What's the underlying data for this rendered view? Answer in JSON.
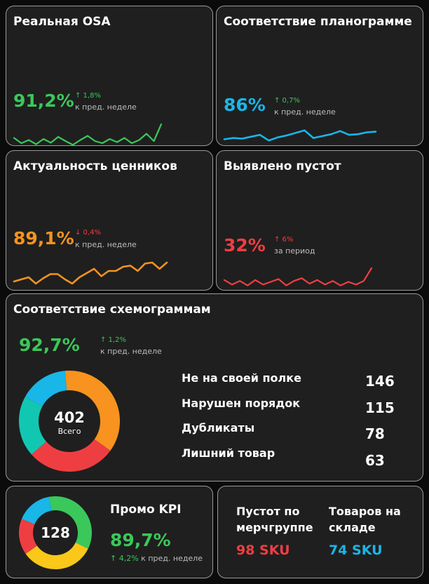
{
  "colors": {
    "green": "#3ac85a",
    "blue": "#19b6e8",
    "orange": "#f7931e",
    "red": "#ef3e42",
    "teal": "#12c7b1",
    "yellow": "#f9c818"
  },
  "cards": {
    "osa": {
      "title": "Реальная OSA",
      "value": "91,2%",
      "delta": "↑ 1,8%",
      "note": "к пред. неделе",
      "spark": [
        0.35,
        0.1,
        0.25,
        0.05,
        0.3,
        0.12,
        0.4,
        0.2,
        0.02,
        0.25,
        0.45,
        0.2,
        0.1,
        0.3,
        0.15,
        0.35,
        0.1,
        0.25,
        0.55,
        0.2,
        1.0
      ]
    },
    "planogram": {
      "title": "Соответствие планограмме",
      "value": "86%",
      "delta": "↑ 0,7%",
      "note": "к пред. неделе",
      "spark": [
        0.2,
        0.3,
        0.25,
        0.4,
        0.55,
        0.1,
        0.35,
        0.5,
        0.7,
        0.9,
        0.3,
        0.45,
        0.6,
        0.85,
        0.55,
        0.6,
        0.75,
        0.8
      ]
    },
    "price_tags": {
      "title": "Актуальность ценников",
      "value": "89,1%",
      "delta": "↓ 0,4%",
      "note": "к пред. неделе",
      "spark": [
        0.1,
        0.2,
        0.3,
        0.0,
        0.25,
        0.45,
        0.45,
        0.2,
        0.0,
        0.3,
        0.5,
        0.7,
        0.35,
        0.6,
        0.6,
        0.8,
        0.85,
        0.6,
        0.95,
        1.0,
        0.7,
        1.0
      ]
    },
    "gaps": {
      "title": "Выявлено пустот",
      "value": "32%",
      "delta": "↑ 6%",
      "note": "за период",
      "spark": [
        0.35,
        0.1,
        0.3,
        0.05,
        0.35,
        0.1,
        0.25,
        0.4,
        0.05,
        0.3,
        0.45,
        0.15,
        0.35,
        0.1,
        0.3,
        0.05,
        0.25,
        0.1,
        0.3,
        1.0
      ]
    }
  },
  "schemogram": {
    "title": "Соответствие схемограммам",
    "value": "92,7%",
    "delta": "↑ 1,2%",
    "note": "к пред. неделе",
    "total": "402",
    "total_label": "Всего",
    "segments": [
      {
        "value": 146,
        "color": "#f7931e"
      },
      {
        "value": 115,
        "color": "#ef3e42"
      },
      {
        "value": 78,
        "color": "#12c7b1"
      },
      {
        "value": 63,
        "color": "#19b6e8"
      }
    ],
    "items": [
      {
        "label": "Не на своей полке",
        "value": "146"
      },
      {
        "label": "Нарушен порядок",
        "value": "115"
      },
      {
        "label": "Дубликаты",
        "value": "78"
      },
      {
        "label": "Лишний товар",
        "value": "63"
      }
    ]
  },
  "promo": {
    "title": "Промо KPI",
    "value": "89,7%",
    "delta": "↑ 4,2%",
    "note": "к пред. неделе",
    "total": "128",
    "segments": [
      {
        "value": 35,
        "color": "#3ac85a"
      },
      {
        "value": 33,
        "color": "#f9c818"
      },
      {
        "value": 16,
        "color": "#ef3e42"
      },
      {
        "value": 16,
        "color": "#19b6e8"
      }
    ]
  },
  "stock": {
    "gaps_title_line1": "Пустот по",
    "gaps_title_line2": "мерчгруппе",
    "gaps_value": "98 SKU",
    "goods_title_line1": "Товаров на",
    "goods_title_line2": "складе",
    "goods_value": "74 SKU"
  }
}
